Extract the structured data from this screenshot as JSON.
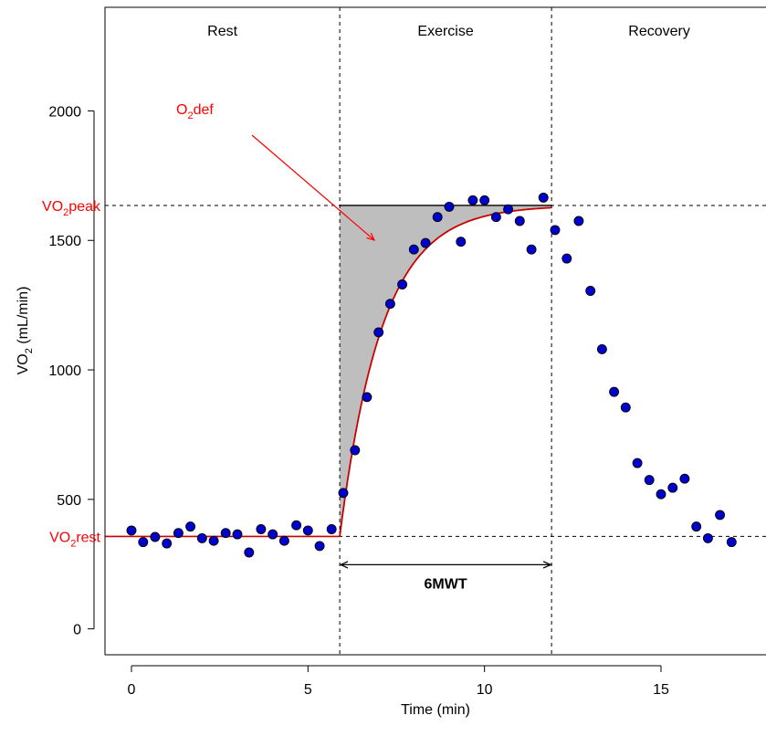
{
  "chart_data": {
    "type": "scatter",
    "xlabel": "Time (min)",
    "ylabel": "VO",
    "ylabel_sub": "2",
    "ylabel_unit": " (mL/min)",
    "xlim": [
      -0.75,
      18
    ],
    "ylim": [
      -100,
      2400
    ],
    "x_ticks": [
      0,
      5,
      10,
      15
    ],
    "y_ticks": [
      0,
      500,
      1000,
      1500,
      2000
    ],
    "grid": false,
    "phases": [
      {
        "label": "Rest",
        "x_start": -0.75,
        "x_end": 5.9
      },
      {
        "label": "Exercise",
        "x_start": 5.9,
        "x_end": 11.9
      },
      {
        "label": "Recovery",
        "x_start": 11.9,
        "x_end": 18
      }
    ],
    "vo2_rest": 357,
    "vo2_peak": 1635,
    "exercise_start": 5.9,
    "exercise_end": 11.9,
    "time_constant": 1.2,
    "label_rest_main": "VO",
    "label_rest_sub": "2",
    "label_rest_tail": "rest",
    "label_peak_main": "VO",
    "label_peak_sub": "2",
    "label_peak_tail": "peak",
    "label_def_main": "O",
    "label_def_sub": "2",
    "label_def_tail": "def",
    "test_label": "6MWT",
    "colors": {
      "points": "#0000cc",
      "fit": "#cc0000",
      "annotation": "#ff0000",
      "deficit_fill": "#bebebe"
    },
    "series": [
      {
        "x": [
          0,
          0.33,
          0.67,
          1,
          1.33,
          1.67,
          2,
          2.33,
          2.67,
          3,
          3.33,
          3.67,
          4,
          4.33,
          4.67,
          5,
          5.33,
          5.67,
          6,
          6.33,
          6.67,
          7,
          7.33,
          7.67,
          8,
          8.33,
          8.67,
          9,
          9.33,
          9.67,
          10,
          10.33,
          10.67,
          11,
          11.33,
          11.67,
          12,
          12.33,
          12.67,
          13,
          13.33,
          13.67,
          14,
          14.33,
          14.67,
          15,
          15.33,
          15.67,
          16,
          16.33,
          16.67,
          17
        ],
        "values": [
          380,
          335,
          355,
          330,
          370,
          395,
          350,
          340,
          370,
          365,
          295,
          385,
          365,
          340,
          400,
          380,
          320,
          385,
          525,
          690,
          895,
          1145,
          1255,
          1330,
          1465,
          1490,
          1590,
          1630,
          1495,
          1655,
          1655,
          1590,
          1620,
          1575,
          1465,
          1665,
          1540,
          1430,
          1575,
          1305,
          1080,
          915,
          855,
          640,
          575,
          520,
          545,
          580,
          395,
          350,
          440,
          335
        ]
      }
    ]
  }
}
